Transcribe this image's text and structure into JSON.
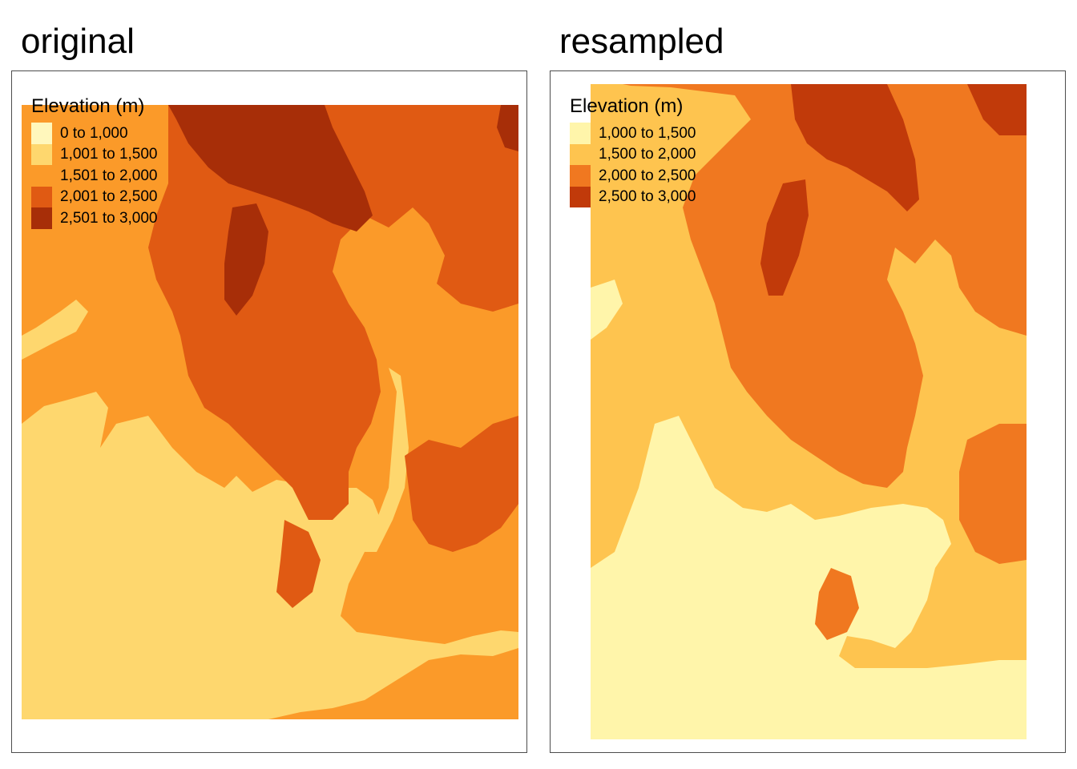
{
  "panels": [
    {
      "id": "original",
      "title": "original",
      "legend": {
        "title": "Elevation (m)",
        "items": [
          {
            "label": "0 to 1,000",
            "color": "#FFF7BC"
          },
          {
            "label": "1,001 to 1,500",
            "color": "#FED76E"
          },
          {
            "label": "1,501 to 2,000",
            "color": "#FB9A29"
          },
          {
            "label": "2,001 to 2,500",
            "color": "#E05A13"
          },
          {
            "label": "2,501 to 3,000",
            "color": "#A72E08"
          }
        ]
      }
    },
    {
      "id": "resampled",
      "title": "resampled",
      "legend": {
        "title": "Elevation (m)",
        "items": [
          {
            "label": "1,000 to 1,500",
            "color": "#FFF5AA"
          },
          {
            "label": "1,500 to 2,000",
            "color": "#FEC44F"
          },
          {
            "label": "2,000 to 2,500",
            "color": "#F07820"
          },
          {
            "label": "2,500 to 3,000",
            "color": "#C13A0A"
          }
        ]
      }
    }
  ]
}
